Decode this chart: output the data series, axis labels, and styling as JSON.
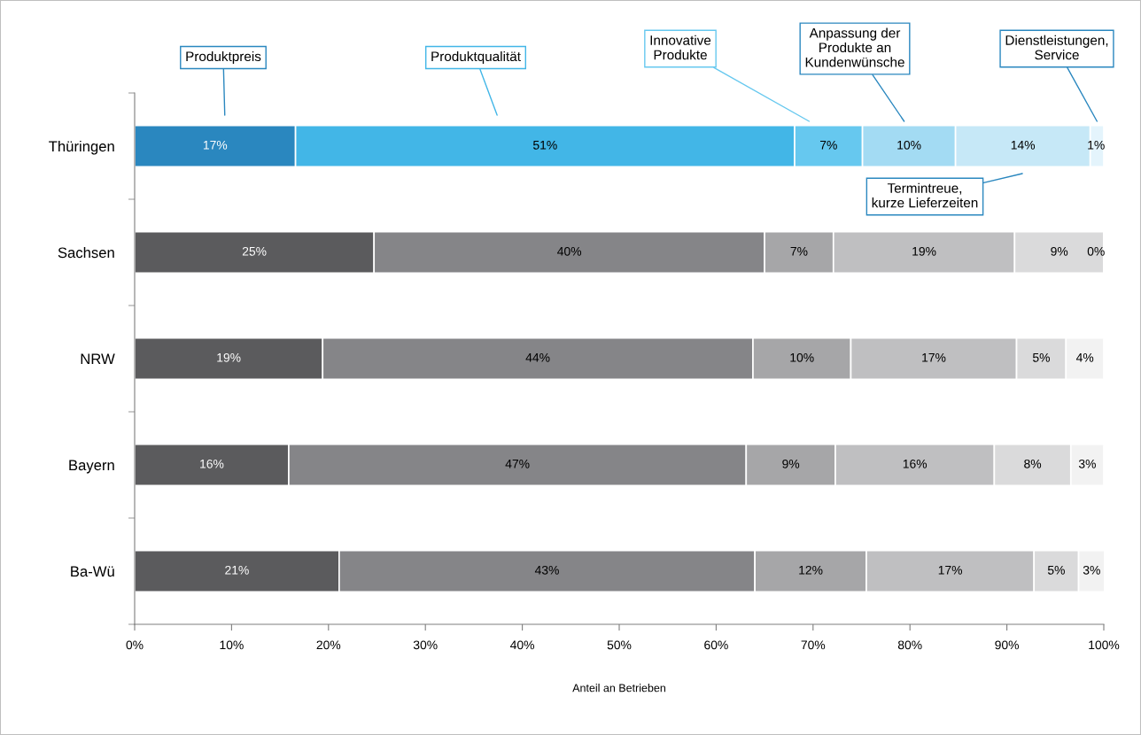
{
  "chart_data": {
    "type": "bar",
    "orientation": "horizontal",
    "stacked": true,
    "xlabel": "Anteil an Betrieben",
    "categories": [
      "Thüringen",
      "Sachsen",
      "NRW",
      "Bayern",
      "Ba-Wü"
    ],
    "xlim": [
      0,
      100
    ],
    "xticks": [
      {
        "value": 0,
        "label": "0%"
      },
      {
        "value": 10,
        "label": "10%"
      },
      {
        "value": 20,
        "label": "20%"
      },
      {
        "value": 30,
        "label": "30%"
      },
      {
        "value": 40,
        "label": "40%"
      },
      {
        "value": 50,
        "label": "50%"
      },
      {
        "value": 60,
        "label": "60%"
      },
      {
        "value": 70,
        "label": "70%"
      },
      {
        "value": 80,
        "label": "80%"
      },
      {
        "value": 90,
        "label": "90%"
      },
      {
        "value": 100,
        "label": "100%"
      }
    ],
    "grid": false,
    "legend": false,
    "series": [
      {
        "name": "Produktpreis",
        "colors": [
          "#2a87bf",
          "#5b5b5d",
          "#5b5b5d",
          "#5b5b5d",
          "#5b5b5d"
        ],
        "values": [
          16.6,
          24.7,
          19.4,
          15.9,
          21.1
        ],
        "value_labels": [
          "17%",
          "25%",
          "19%",
          "16%",
          "21%"
        ]
      },
      {
        "name": "Produktqualität",
        "colors": [
          "#42b6e7",
          "#858588",
          "#858588",
          "#858588",
          "#858588"
        ],
        "values": [
          51.5,
          40.3,
          44.4,
          47.2,
          42.9
        ],
        "value_labels": [
          "51%",
          "40%",
          "44%",
          "47%",
          "43%"
        ]
      },
      {
        "name": "Innovative\nProdukte",
        "colors": [
          "#66c8ef",
          "#a6a6a8",
          "#a6a6a8",
          "#a6a6a8",
          "#a6a6a8"
        ],
        "values": [
          7.0,
          7.1,
          10.1,
          9.2,
          11.5
        ],
        "value_labels": [
          "7%",
          "7%",
          "10%",
          "9%",
          "12%"
        ]
      },
      {
        "name": "Anpassung der\nProdukte an\nKundenwünsche",
        "colors": [
          "#a3dbf3",
          "#bfbfc1",
          "#bfbfc1",
          "#bfbfc1",
          "#bfbfc1"
        ],
        "values": [
          9.6,
          18.7,
          17.1,
          16.4,
          17.3
        ],
        "value_labels": [
          "10%",
          "19%",
          "17%",
          "16%",
          "17%"
        ]
      },
      {
        "name": "Termintreue,\nkurze Lieferzeiten",
        "colors": [
          "#c6e8f7",
          "#dadadb",
          "#dadadb",
          "#dadadb",
          "#dadadb"
        ],
        "values": [
          13.9,
          9.2,
          5.1,
          7.9,
          4.6
        ],
        "value_labels": [
          "14%",
          "9%",
          "5%",
          "8%",
          "5%"
        ]
      },
      {
        "name": "Dienstleistungen,\nService",
        "colors": [
          "#e4f4fc",
          "#f2f2f2",
          "#f2f2f2",
          "#f2f2f2",
          "#f2f2f2"
        ],
        "values": [
          1.4,
          0,
          3.9,
          3.4,
          2.7
        ],
        "value_labels": [
          "1%",
          "0%",
          "4%",
          "3%",
          "3%"
        ]
      }
    ]
  }
}
